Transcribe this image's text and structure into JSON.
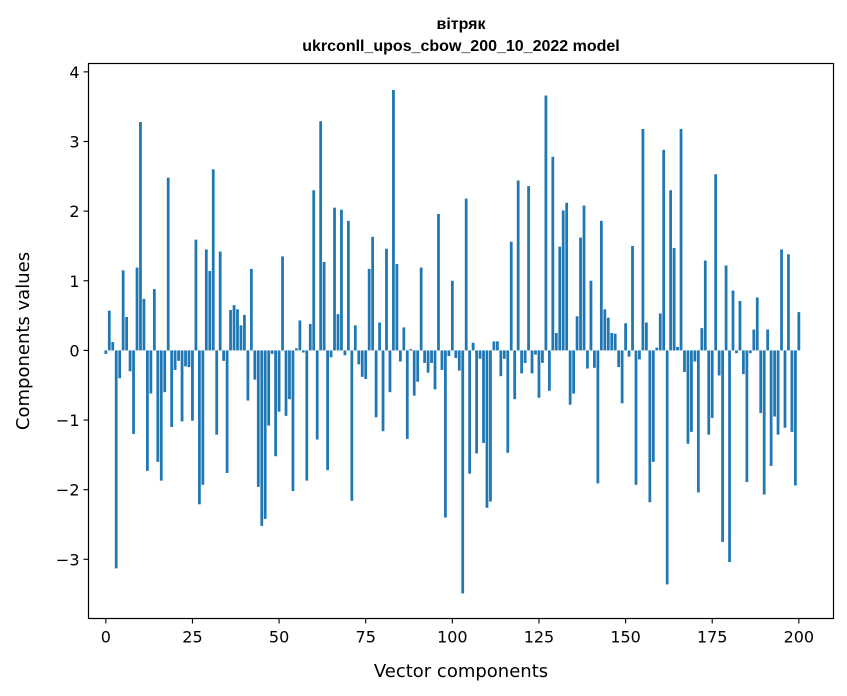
{
  "chart_data": {
    "type": "bar",
    "title_line1": "вітряк",
    "title_line2": "ukrconll_upos_cbow_200_10_2022 model",
    "xlabel": "Vector components",
    "ylabel": "Components values",
    "xlim": [
      -5,
      210
    ],
    "ylim": [
      -3.85,
      4.12
    ],
    "xticks": [
      0,
      25,
      50,
      75,
      100,
      125,
      150,
      175,
      200
    ],
    "yticks": [
      -3,
      -2,
      -1,
      0,
      1,
      2,
      3,
      4
    ],
    "bar_color": "#1f77b4",
    "grid": false,
    "values": [
      -0.05,
      0.57,
      0.12,
      -3.13,
      -0.4,
      1.15,
      0.48,
      -0.3,
      -1.2,
      1.19,
      3.28,
      0.74,
      -1.73,
      -0.62,
      0.88,
      -1.6,
      -1.87,
      -0.6,
      2.48,
      -1.1,
      -0.28,
      -0.15,
      -1.02,
      -0.23,
      -0.24,
      -1.01,
      1.59,
      -2.21,
      -1.93,
      1.45,
      1.14,
      2.6,
      -1.21,
      1.42,
      -0.15,
      -1.76,
      0.58,
      0.65,
      0.59,
      0.36,
      0.51,
      -0.72,
      1.17,
      -0.42,
      -1.96,
      -2.52,
      -2.42,
      -1.08,
      -0.05,
      -1.52,
      -0.88,
      1.35,
      -0.94,
      -0.7,
      -2.02,
      0.03,
      0.43,
      -0.03,
      -1.87,
      0.38,
      2.3,
      -1.28,
      3.29,
      1.27,
      -1.72,
      -0.1,
      2.05,
      0.52,
      2.02,
      -0.07,
      1.86,
      -2.16,
      0.36,
      -0.2,
      -0.38,
      -0.41,
      1.17,
      1.63,
      -0.96,
      0.4,
      -1.16,
      1.46,
      -0.6,
      3.74,
      1.24,
      -0.16,
      0.33,
      -1.27,
      0.02,
      -0.65,
      -0.45,
      1.19,
      -0.18,
      -0.32,
      -0.18,
      -0.56,
      1.96,
      -0.28,
      -2.4,
      -0.08,
      1.0,
      -0.11,
      -0.29,
      -3.49,
      2.18,
      -1.77,
      0.11,
      -1.48,
      -0.12,
      -1.33,
      -2.26,
      -2.17,
      0.13,
      0.13,
      -0.37,
      -0.12,
      -1.47,
      1.56,
      -0.7,
      2.44,
      -0.33,
      -0.18,
      2.36,
      -0.33,
      -0.06,
      -0.68,
      -0.18,
      3.66,
      -0.58,
      2.78,
      0.25,
      1.49,
      2.01,
      2.12,
      -0.78,
      -0.62,
      0.49,
      1.62,
      2.08,
      -0.26,
      1.0,
      -0.25,
      -1.91,
      1.86,
      0.59,
      0.47,
      0.25,
      0.24,
      -0.24,
      -0.76,
      0.39,
      -0.09,
      1.5,
      -1.93,
      -0.13,
      3.18,
      0.4,
      -2.18,
      -1.6,
      0.04,
      0.53,
      2.88,
      -3.36,
      2.3,
      1.47,
      0.05,
      3.18,
      -0.31,
      -1.34,
      -1.17,
      -0.16,
      -2.04,
      0.32,
      1.29,
      -1.21,
      -0.97,
      2.53,
      -0.36,
      -2.75,
      1.22,
      -3.04,
      0.86,
      -0.04,
      0.71,
      -0.34,
      -1.89,
      -0.04,
      0.3,
      0.76,
      -0.9,
      -2.07,
      0.3,
      -1.66,
      -0.95,
      -1.21,
      1.45,
      -1.11,
      1.38,
      -1.17,
      -1.94,
      0.55
    ]
  }
}
